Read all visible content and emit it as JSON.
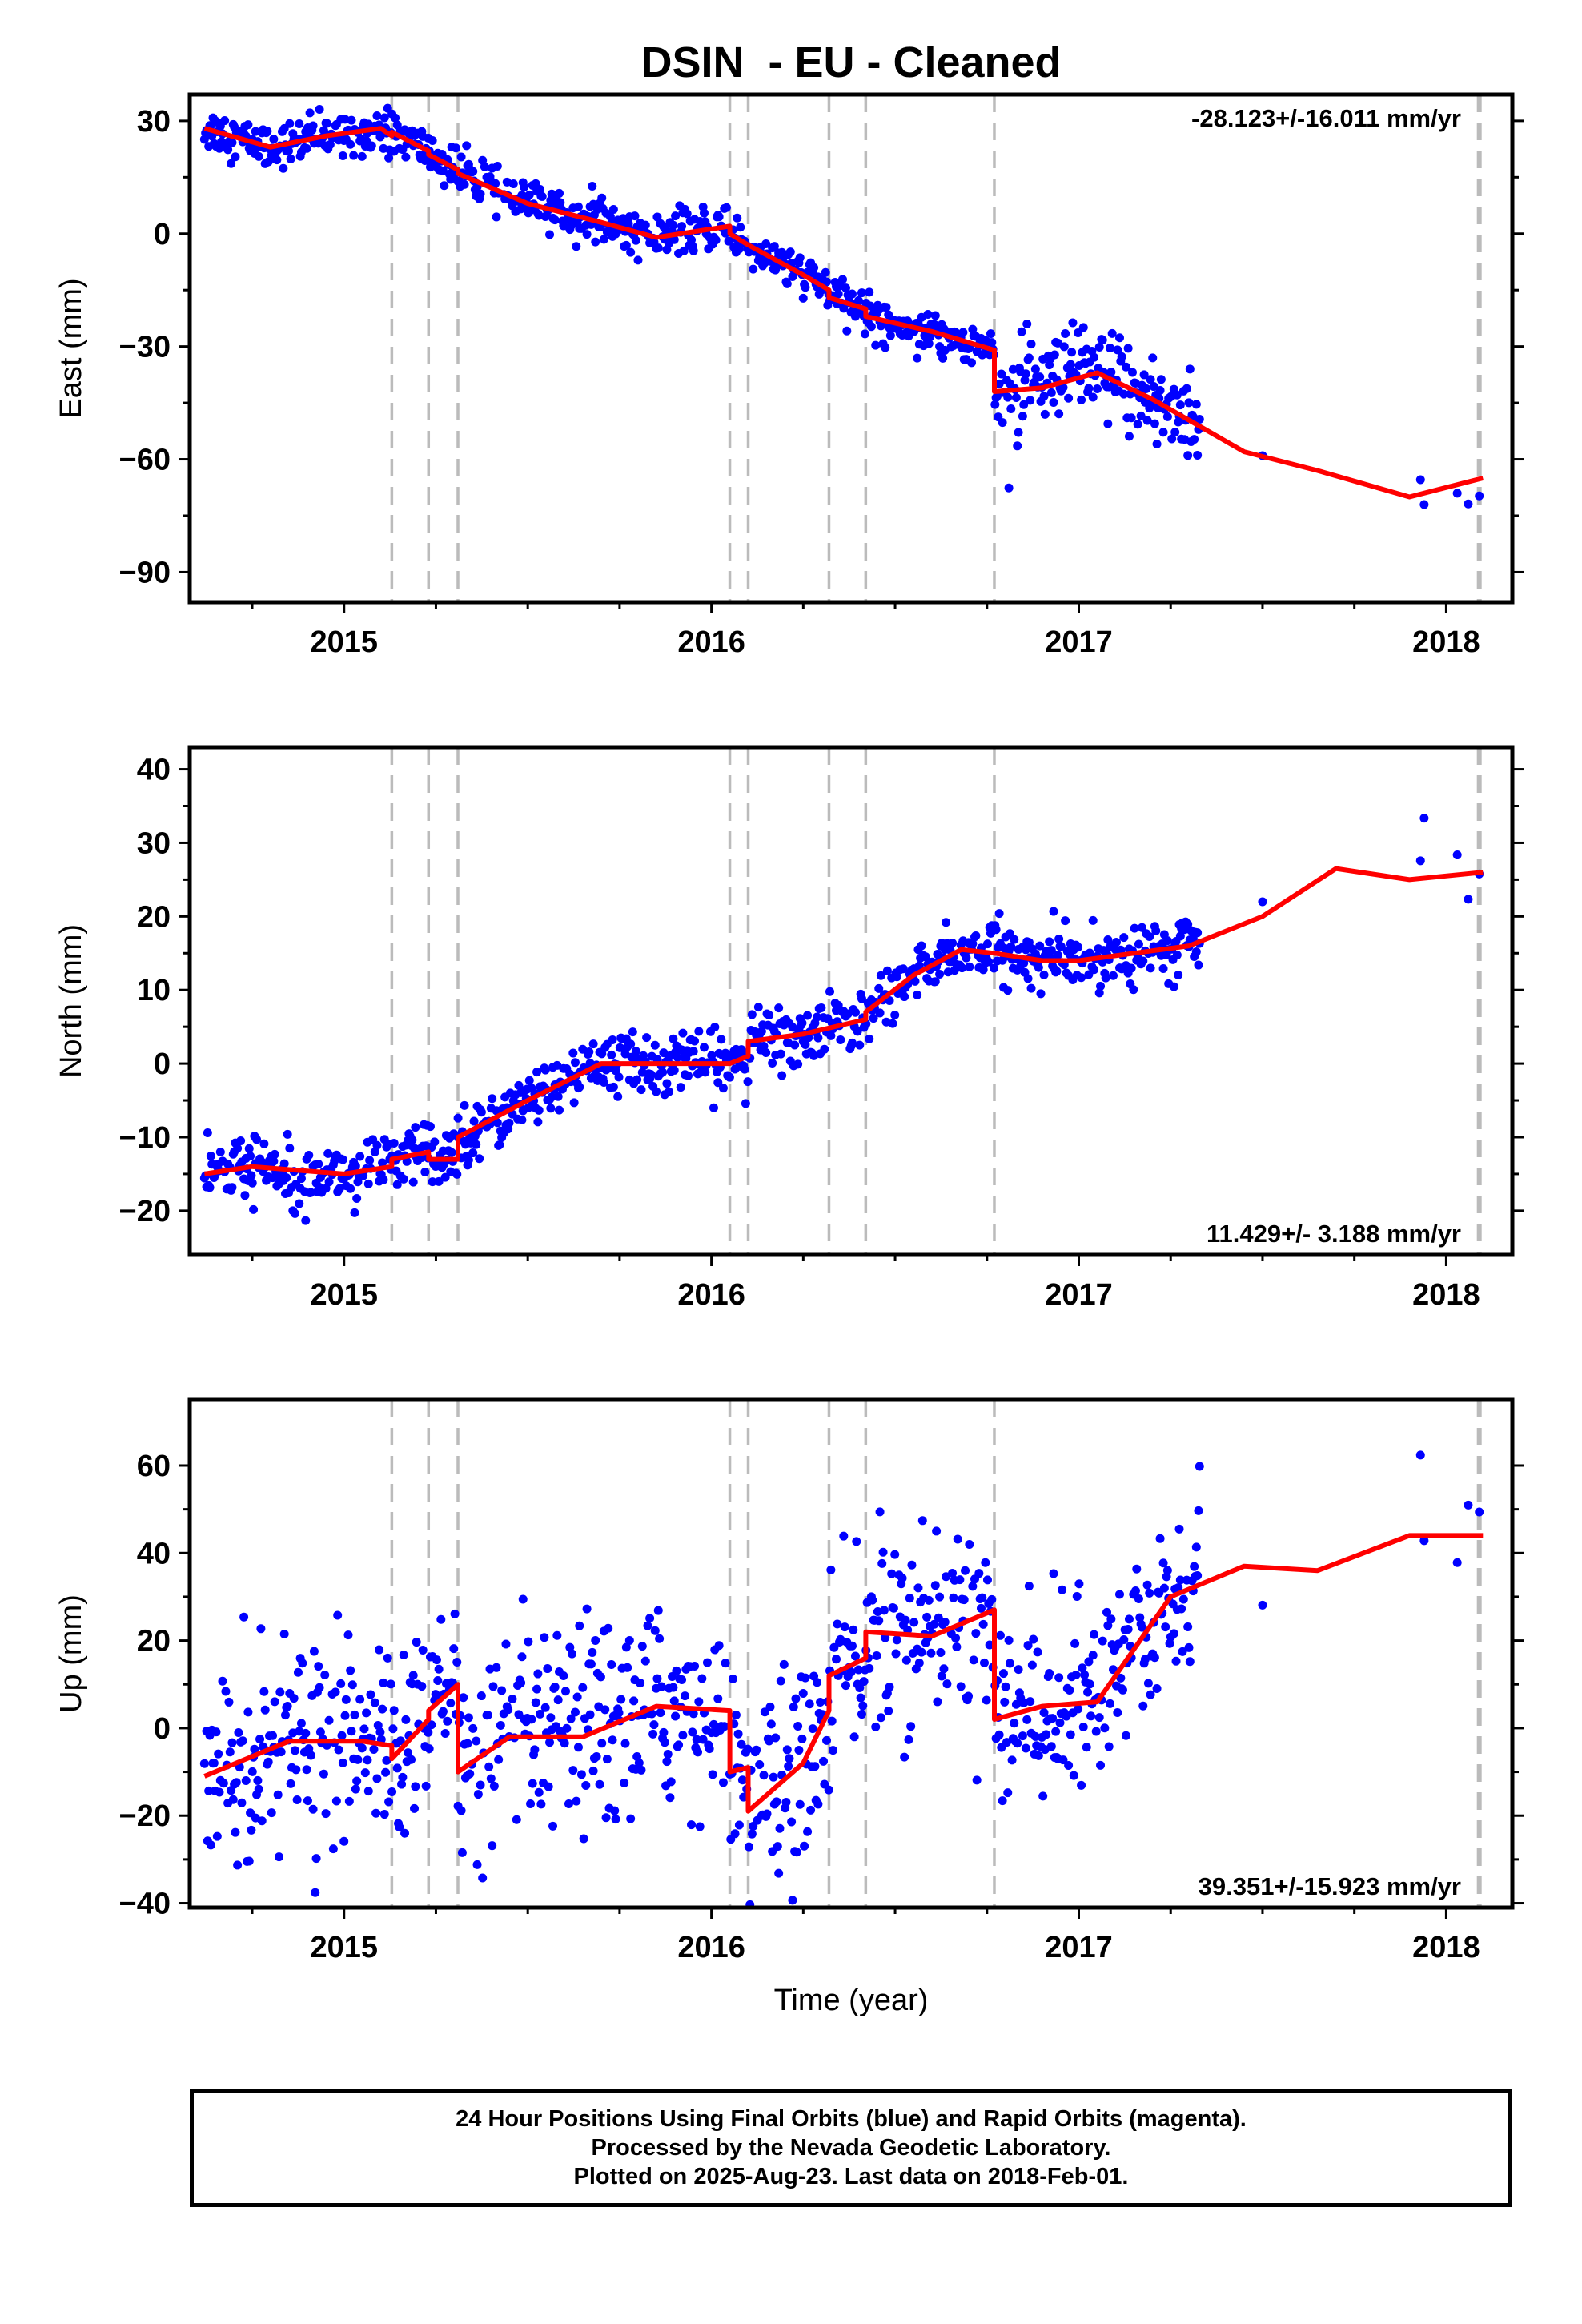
{
  "figure_title": "DSIN  - EU - Cleaned",
  "footer": {
    "line1": "24 Hour Positions Using Final Orbits (blue) and Rapid Orbits (magenta).",
    "line2": "Processed by the Nevada Geodetic Laboratory.",
    "line3": "Plotted on 2025-Aug-23. Last data on 2018-Feb-01."
  },
  "colors": {
    "data_points": "#0000ff",
    "model_line": "#ff0000",
    "equipment_change_lines": "#bbbbbb",
    "frame": "#000000"
  },
  "chart_data": [
    {
      "type": "scatter",
      "component": "east",
      "ylabel": "East (mm)",
      "xlabel": "",
      "rate_annotation": "-28.123+/-16.011 mm/yr",
      "annotation_placement": "top-right",
      "xlim": [
        2014.58,
        2018.18
      ],
      "ylim": [
        -98,
        37
      ],
      "xticks": [
        2015,
        2016,
        2017,
        2018
      ],
      "yticks": [
        30,
        0,
        -30,
        -60,
        -90
      ],
      "ytick_labels": [
        "30",
        "0",
        "−30",
        "−60",
        "−90"
      ],
      "event_lines_year": [
        2015.13,
        2015.23,
        2015.31,
        2016.05,
        2016.1,
        2016.32,
        2016.42,
        2016.77,
        2018.09
      ],
      "model_line": {
        "x": [
          2014.62,
          2014.8,
          2014.95,
          2015.1,
          2015.13,
          2015.13,
          2015.23,
          2015.23,
          2015.31,
          2015.31,
          2015.5,
          2015.7,
          2015.85,
          2016.05,
          2016.05,
          2016.1,
          2016.1,
          2016.25,
          2016.32,
          2016.32,
          2016.42,
          2016.42,
          2016.6,
          2016.77,
          2016.77,
          2016.9,
          2017.05,
          2017.2,
          2017.45,
          2017.65,
          2017.9,
          2018.1
        ],
        "y": [
          28,
          23,
          26,
          28,
          26,
          27,
          22,
          21,
          17,
          16,
          8,
          3,
          -1,
          2,
          0,
          -3,
          -3,
          -11,
          -15,
          -17,
          -20,
          -22,
          -26,
          -31,
          -42,
          -41,
          -37,
          -44,
          -58,
          -63,
          -70,
          -65
        ]
      },
      "points_summary": "daily 24-hour positions, ~1000 points, 2014.62–2017.33 plus sparse 2017.5–2018.09"
    },
    {
      "type": "scatter",
      "component": "north",
      "ylabel": "North (mm)",
      "xlabel": "",
      "rate_annotation": "11.429+/- 3.188 mm/yr",
      "annotation_placement": "bottom-right",
      "xlim": [
        2014.58,
        2018.18
      ],
      "ylim": [
        -26,
        43
      ],
      "xticks": [
        2015,
        2016,
        2017,
        2018
      ],
      "yticks": [
        40,
        30,
        20,
        10,
        0,
        -10,
        -20
      ],
      "ytick_labels": [
        "40",
        "30",
        "20",
        "10",
        "0",
        "−10",
        "−20"
      ],
      "event_lines_year": [
        2015.13,
        2015.23,
        2015.31,
        2016.05,
        2016.1,
        2016.32,
        2016.42,
        2016.77,
        2018.09
      ],
      "model_line": {
        "x": [
          2014.62,
          2014.75,
          2015.0,
          2015.13,
          2015.13,
          2015.23,
          2015.23,
          2015.31,
          2015.31,
          2015.5,
          2015.7,
          2015.9,
          2016.05,
          2016.1,
          2016.1,
          2016.25,
          2016.42,
          2016.42,
          2016.55,
          2016.68,
          2016.77,
          2016.9,
          2017.0,
          2017.3,
          2017.5,
          2017.7,
          2017.9,
          2018.1
        ],
        "y": [
          -15,
          -14,
          -15,
          -14,
          -13,
          -12,
          -13,
          -13,
          -10,
          -5,
          0,
          0,
          0,
          1,
          3,
          4,
          6,
          7,
          12,
          15.5,
          15,
          14,
          14,
          16,
          20,
          26.5,
          25,
          26
        ]
      },
      "points_summary": "daily 24-hour positions, ~1000 points, 2014.62–2017.33 plus sparse 2017.5–2018.09"
    },
    {
      "type": "scatter",
      "component": "up",
      "ylabel": "Up (mm)",
      "xlabel": "Time (year)",
      "rate_annotation": "39.351+/-15.923 mm/yr",
      "annotation_placement": "bottom-right",
      "xlim": [
        2014.58,
        2018.18
      ],
      "ylim": [
        -41,
        75
      ],
      "xticks": [
        2015,
        2016,
        2017,
        2018
      ],
      "yticks": [
        60,
        40,
        20,
        0,
        -20,
        -40
      ],
      "ytick_labels": [
        "60",
        "40",
        "20",
        "0",
        "−20",
        "−40"
      ],
      "event_lines_year": [
        2015.13,
        2015.23,
        2015.31,
        2016.05,
        2016.1,
        2016.32,
        2016.42,
        2016.77,
        2018.09
      ],
      "model_line": {
        "x": [
          2014.62,
          2014.85,
          2015.05,
          2015.13,
          2015.13,
          2015.23,
          2015.23,
          2015.31,
          2015.31,
          2015.45,
          2015.65,
          2015.85,
          2016.05,
          2016.05,
          2016.1,
          2016.1,
          2016.25,
          2016.32,
          2016.32,
          2016.42,
          2016.42,
          2016.6,
          2016.77,
          2016.77,
          2016.9,
          2017.05,
          2017.25,
          2017.45,
          2017.65,
          2017.9,
          2018.1
        ],
        "y": [
          -11,
          -3,
          -3,
          -4,
          -7,
          2,
          4,
          10,
          -10,
          -2,
          -2,
          5,
          4,
          -10,
          -9,
          -19,
          -8,
          4,
          12,
          16,
          22,
          21,
          27,
          2,
          5,
          6,
          30,
          37,
          36,
          44,
          44
        ]
      },
      "points_summary": "daily 24-hour positions, ~1000 points, 2014.62–2017.33 plus sparse 2017.5–2018.09"
    }
  ]
}
